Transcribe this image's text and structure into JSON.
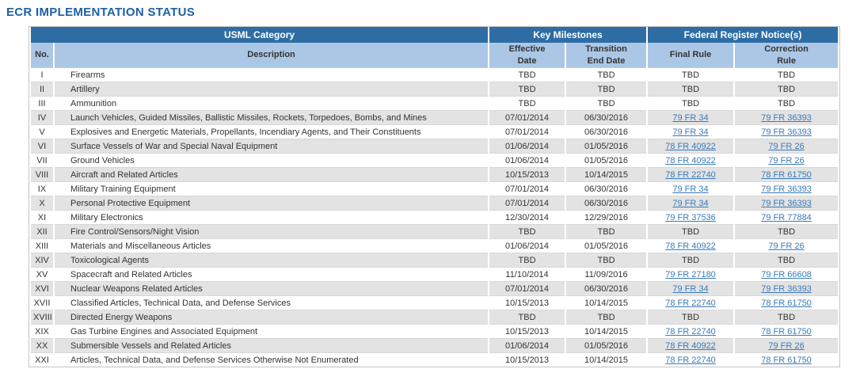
{
  "page_title": "ECR IMPLEMENTATION STATUS",
  "table": {
    "group_headers": [
      {
        "label": "USML Category"
      },
      {
        "label": "Key Milestones"
      },
      {
        "label": "Federal Register Notice(s)"
      }
    ],
    "columns": {
      "no": "No.",
      "description": "Description",
      "effective_date": "Effective\nDate",
      "transition_end_date": "Transition\nEnd Date",
      "final_rule": "Final Rule",
      "correction_rule": "Correction\nRule"
    },
    "rows": [
      {
        "no": "I",
        "description": "Firearms",
        "effective_date": "TBD",
        "transition_end_date": "TBD",
        "final_rule": "TBD",
        "correction_rule": "TBD"
      },
      {
        "no": "II",
        "description": "Artillery",
        "effective_date": "TBD",
        "transition_end_date": "TBD",
        "final_rule": "TBD",
        "correction_rule": "TBD"
      },
      {
        "no": "III",
        "description": "Ammunition",
        "effective_date": "TBD",
        "transition_end_date": "TBD",
        "final_rule": "TBD",
        "correction_rule": "TBD"
      },
      {
        "no": "IV",
        "description": "Launch Vehicles, Guided Missiles, Ballistic Missiles, Rockets, Torpedoes, Bombs, and Mines",
        "effective_date": "07/01/2014",
        "transition_end_date": "06/30/2016",
        "final_rule": "79 FR 34",
        "correction_rule": "79 FR 36393"
      },
      {
        "no": "V",
        "description": "Explosives and Energetic Materials, Propellants, Incendiary Agents, and Their Constituents",
        "effective_date": "07/01/2014",
        "transition_end_date": "06/30/2016",
        "final_rule": "79 FR 34",
        "correction_rule": "79 FR 36393"
      },
      {
        "no": "VI",
        "description": "Surface Vessels of War and Special Naval Equipment",
        "effective_date": "01/06/2014",
        "transition_end_date": "01/05/2016",
        "final_rule": "78 FR 40922",
        "correction_rule": "79 FR 26"
      },
      {
        "no": "VII",
        "description": "Ground Vehicles",
        "effective_date": "01/06/2014",
        "transition_end_date": "01/05/2016",
        "final_rule": "78 FR 40922",
        "correction_rule": "79 FR 26"
      },
      {
        "no": "VIII",
        "description": "Aircraft and Related Articles",
        "effective_date": "10/15/2013",
        "transition_end_date": "10/14/2015",
        "final_rule": "78 FR 22740",
        "correction_rule": "78 FR 61750"
      },
      {
        "no": "IX",
        "description": "Military Training Equipment",
        "effective_date": "07/01/2014",
        "transition_end_date": "06/30/2016",
        "final_rule": "79 FR 34",
        "correction_rule": "79 FR 36393"
      },
      {
        "no": "X",
        "description": "Personal Protective Equipment",
        "effective_date": "07/01/2014",
        "transition_end_date": "06/30/2016",
        "final_rule": "79 FR 34",
        "correction_rule": "79 FR 36393"
      },
      {
        "no": "XI",
        "description": "Military Electronics",
        "effective_date": "12/30/2014",
        "transition_end_date": "12/29/2016",
        "final_rule": "79 FR 37536",
        "correction_rule": "79 FR 77884"
      },
      {
        "no": "XII",
        "description": "Fire Control/Sensors/Night Vision",
        "effective_date": "TBD",
        "transition_end_date": "TBD",
        "final_rule": "TBD",
        "correction_rule": "TBD"
      },
      {
        "no": "XIII",
        "description": "Materials and Miscellaneous Articles",
        "effective_date": "01/06/2014",
        "transition_end_date": "01/05/2016",
        "final_rule": "78 FR 40922",
        "correction_rule": "79 FR 26"
      },
      {
        "no": "XIV",
        "description": "Toxicological Agents",
        "effective_date": "TBD",
        "transition_end_date": "TBD",
        "final_rule": "TBD",
        "correction_rule": "TBD"
      },
      {
        "no": "XV",
        "description": "Spacecraft and Related Articles",
        "effective_date": "11/10/2014",
        "transition_end_date": "11/09/2016",
        "final_rule": "79 FR 27180",
        "correction_rule": "79 FR 66608"
      },
      {
        "no": "XVI",
        "description": "Nuclear Weapons Related Articles",
        "effective_date": "07/01/2014",
        "transition_end_date": "06/30/2016",
        "final_rule": "79 FR 34",
        "correction_rule": "79 FR 36393"
      },
      {
        "no": "XVII",
        "description": "Classified Articles, Technical Data, and Defense Services",
        "effective_date": "10/15/2013",
        "transition_end_date": "10/14/2015",
        "final_rule": "78 FR 22740",
        "correction_rule": "78 FR 61750"
      },
      {
        "no": "XVIII",
        "description": "Directed Energy Weapons",
        "effective_date": "TBD",
        "transition_end_date": "TBD",
        "final_rule": "TBD",
        "correction_rule": "TBD"
      },
      {
        "no": "XIX",
        "description": "Gas Turbine Engines and Associated Equipment",
        "effective_date": "10/15/2013",
        "transition_end_date": "10/14/2015",
        "final_rule": "78 FR 22740",
        "correction_rule": "78 FR 61750"
      },
      {
        "no": "XX",
        "description": "Submersible Vessels and Related Articles",
        "effective_date": "01/06/2014",
        "transition_end_date": "01/05/2016",
        "final_rule": "78 FR 40922",
        "correction_rule": "79 FR 26"
      },
      {
        "no": "XXI",
        "description": "Articles, Technical Data, and Defense Services Otherwise Not Enumerated",
        "effective_date": "10/15/2013",
        "transition_end_date": "10/14/2015",
        "final_rule": "78 FR 22740",
        "correction_rule": "78 FR 61750"
      }
    ],
    "tbd_label": "TBD"
  },
  "colors": {
    "title_blue": "#1d5fa5",
    "header_dark_blue": "#2e6da4",
    "header_light_blue": "#abc7e5",
    "stripe_gray": "#e3e3e3",
    "link_blue": "#3a7ab9"
  }
}
